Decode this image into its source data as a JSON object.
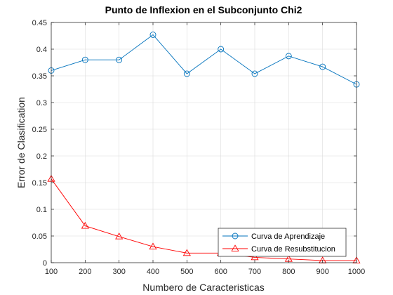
{
  "chart_data": {
    "type": "line",
    "title": "Punto de Inflexion en el Subconjunto Chi2",
    "xlabel": "Numbero de Caracteristicas",
    "ylabel": "Error de Clasification",
    "x": [
      100,
      200,
      300,
      400,
      500,
      600,
      700,
      800,
      900,
      1000
    ],
    "xlim": [
      100,
      1000
    ],
    "ylim": [
      0,
      0.45
    ],
    "xticks": [
      "100",
      "200",
      "300",
      "400",
      "500",
      "600",
      "700",
      "800",
      "900",
      "1000"
    ],
    "yticks": [
      "0",
      "0.05",
      "0.1",
      "0.15",
      "0.2",
      "0.25",
      "0.3",
      "0.35",
      "0.4",
      "0.45"
    ],
    "grid": true,
    "legend_position": "bottom-right",
    "series": [
      {
        "name": "Curva de Aprendizaje",
        "values": [
          0.36,
          0.38,
          0.38,
          0.427,
          0.354,
          0.4,
          0.354,
          0.387,
          0.367,
          0.334
        ],
        "color": "#0072BD",
        "marker": "circle"
      },
      {
        "name": "Curva de Resubstitucion",
        "values": [
          0.157,
          0.069,
          0.049,
          0.03,
          0.018,
          0.018,
          0.01,
          0.007,
          0.004,
          0.004
        ],
        "color": "#FF0000",
        "marker": "triangle"
      }
    ]
  }
}
